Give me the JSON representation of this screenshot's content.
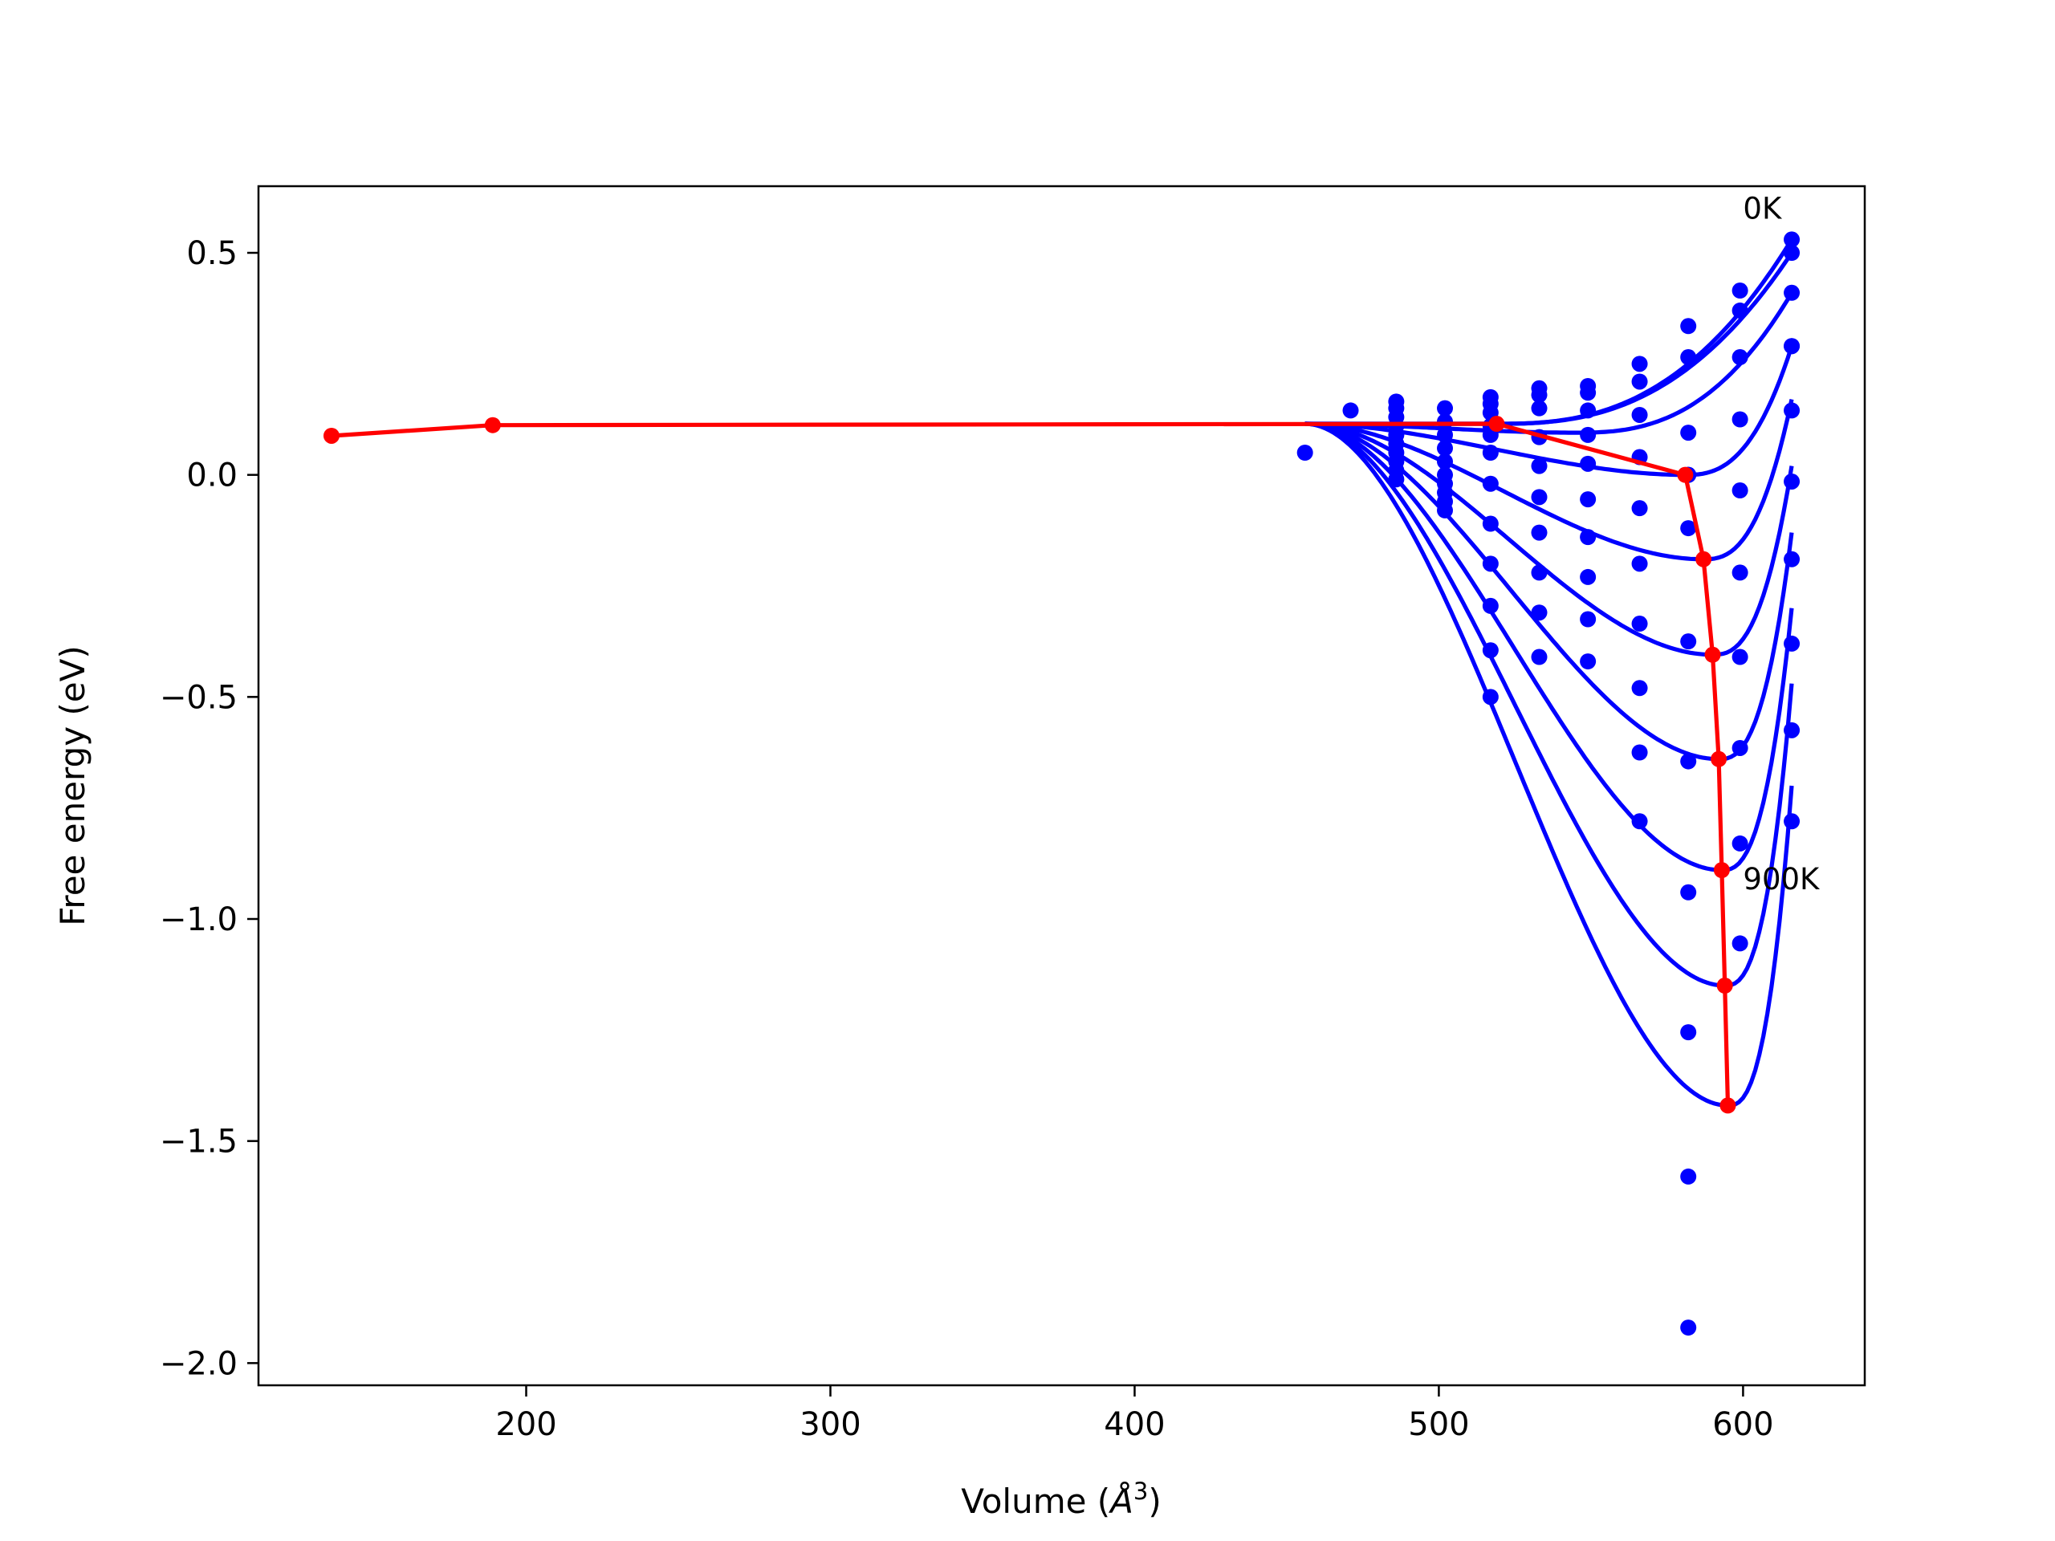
{
  "chart_data": {
    "type": "line",
    "xlabel_main": "Volume (",
    "xlabel_unit": "Å",
    "xlabel_exp": "3",
    "xlabel_close": ")",
    "ylabel": "Free energy (eV)",
    "xlim": [
      112,
      640
    ],
    "ylim": [
      -2.05,
      0.65
    ],
    "xticks": [
      200,
      300,
      400,
      500,
      600
    ],
    "yticks": [
      0.5,
      0.0,
      -0.5,
      -1.0,
      -1.5,
      -2.0
    ],
    "ytick_labels": [
      "0.5",
      "0.0",
      "−0.5",
      "−1.0",
      "−1.5",
      "−2.0"
    ],
    "grid": false,
    "annotations": [
      {
        "text": "0K",
        "x": 600,
        "y": 0.6
      },
      {
        "text": "900K",
        "x": 600,
        "y": -0.91
      }
    ],
    "colors": {
      "fits": "#0000ff",
      "points": "#0000ff",
      "minima": "#ff0000"
    },
    "scatter_points": {
      "x": [
        456,
        471,
        486,
        486,
        486,
        486,
        486,
        486,
        486,
        486,
        486,
        486,
        502,
        502,
        502,
        502,
        502,
        502,
        502,
        502,
        502,
        502,
        517,
        517,
        517,
        517,
        517,
        517,
        517,
        517,
        517,
        517,
        517,
        517,
        533,
        533,
        533,
        533,
        533,
        533,
        533,
        533,
        533,
        533,
        549,
        549,
        549,
        549,
        549,
        549,
        549,
        549,
        549,
        549,
        566,
        566,
        566,
        566,
        566,
        566,
        566,
        566,
        566,
        566,
        582,
        582,
        582,
        582,
        582,
        582,
        582,
        582,
        582,
        582,
        582,
        582,
        599,
        599,
        599,
        599,
        599,
        599,
        599,
        599,
        599,
        599,
        616,
        616,
        616,
        616,
        616,
        616,
        616,
        616,
        616,
        616,
        616
      ],
      "y": [
        0.05,
        0.145,
        0.165,
        0.15,
        0.13,
        0.11,
        0.09,
        0.07,
        0.05,
        0.03,
        0.01,
        -0.01,
        0.15,
        0.12,
        0.09,
        0.06,
        0.03,
        0.0,
        -0.02,
        -0.04,
        -0.06,
        -0.08,
        0.175,
        0.16,
        0.11,
        0.05,
        -0.02,
        -0.11,
        -0.2,
        -0.295,
        -0.395,
        -0.5,
        0.14,
        0.09,
        0.195,
        0.18,
        0.15,
        0.085,
        0.02,
        -0.05,
        -0.13,
        -0.22,
        -0.31,
        -0.41,
        0.2,
        0.185,
        0.145,
        0.09,
        0.025,
        -0.055,
        -0.14,
        -0.23,
        -0.325,
        -0.42,
        0.25,
        0.21,
        0.135,
        0.04,
        -0.075,
        -0.2,
        -0.335,
        -0.48,
        -0.625,
        -0.78,
        0.335,
        0.265,
        0.095,
        -0.12,
        -0.375,
        -0.645,
        -0.94,
        -1.255,
        -1.58,
        -1.92,
        0.0,
        0.0,
        0.415,
        0.37,
        0.265,
        0.125,
        -0.035,
        -0.22,
        -0.41,
        -0.615,
        -0.83,
        -1.055,
        0.53,
        0.5,
        0.41,
        0.29,
        0.145,
        -0.015,
        -0.19,
        -0.38,
        -0.575,
        -0.78,
        0.29
      ]
    },
    "fit_curves": {
      "x_range": [
        456,
        616
      ],
      "series": [
        {
          "label": "0K",
          "min_x": 519,
          "min_y": 0.115,
          "end_y": 0.53
        },
        {
          "min_x": 519,
          "min_y": 0.115,
          "end_y": 0.5
        },
        {
          "min_x": 545,
          "min_y": 0.095,
          "end_y": 0.41
        },
        {
          "min_x": 581,
          "min_y": 0.0,
          "end_y": 0.29
        },
        {
          "min_x": 587,
          "min_y": -0.19,
          "end_y": 0.17
        },
        {
          "min_x": 590,
          "min_y": -0.405,
          "end_y": 0.02
        },
        {
          "min_x": 592,
          "min_y": -0.64,
          "end_y": -0.13
        },
        {
          "min_x": 593,
          "min_y": -0.89,
          "end_y": -0.3
        },
        {
          "min_x": 594,
          "min_y": -1.15,
          "end_y": -0.47
        },
        {
          "label": "900K",
          "min_x": 595,
          "min_y": -1.42,
          "end_y": -0.7
        }
      ],
      "start_y": 0.115
    },
    "minima_path": {
      "x": [
        136,
        189,
        519,
        581,
        587,
        590,
        592,
        593,
        594,
        595
      ],
      "y": [
        0.088,
        0.112,
        0.115,
        0.0,
        -0.19,
        -0.405,
        -0.64,
        -0.89,
        -1.15,
        -1.42
      ]
    }
  }
}
